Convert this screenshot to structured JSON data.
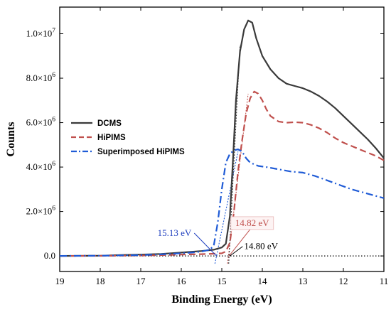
{
  "chart_data": {
    "type": "line",
    "xlabel": "Binding Energy (eV)",
    "ylabel": "Counts",
    "xlim": [
      19,
      11
    ],
    "x_reversed": true,
    "ylim": [
      -700000,
      11200000
    ],
    "x_ticks": [
      19,
      18,
      17,
      16,
      15,
      14,
      13,
      12,
      11
    ],
    "y_ticks": [
      {
        "value": 0,
        "mant": "0.0",
        "exp": ""
      },
      {
        "value": 2000000,
        "mant": "2.0×10",
        "exp": "6"
      },
      {
        "value": 4000000,
        "mant": "4.0×10",
        "exp": "6"
      },
      {
        "value": 6000000,
        "mant": "6.0×10",
        "exp": "6"
      },
      {
        "value": 8000000,
        "mant": "8.0×10",
        "exp": "6"
      },
      {
        "value": 10000000,
        "mant": "1.0×10",
        "exp": "7"
      }
    ],
    "grid": false,
    "legend_position": "middle-left",
    "series": [
      {
        "name": "DCMS",
        "color": "#3a3a3a",
        "style": "solid",
        "points": [
          [
            19,
            0
          ],
          [
            18,
            10000
          ],
          [
            17.5,
            40000
          ],
          [
            17,
            60000
          ],
          [
            16.5,
            90000
          ],
          [
            16,
            150000
          ],
          [
            15.5,
            220000
          ],
          [
            15.2,
            280000
          ],
          [
            15,
            380000
          ],
          [
            14.9,
            550000
          ],
          [
            14.8,
            1800000
          ],
          [
            14.72,
            4500000
          ],
          [
            14.65,
            7000000
          ],
          [
            14.55,
            9200000
          ],
          [
            14.45,
            10200000
          ],
          [
            14.35,
            10600000
          ],
          [
            14.25,
            10500000
          ],
          [
            14.15,
            9800000
          ],
          [
            14.0,
            9000000
          ],
          [
            13.8,
            8400000
          ],
          [
            13.6,
            8000000
          ],
          [
            13.4,
            7750000
          ],
          [
            13.2,
            7650000
          ],
          [
            13.0,
            7550000
          ],
          [
            12.8,
            7400000
          ],
          [
            12.6,
            7200000
          ],
          [
            12.4,
            6950000
          ],
          [
            12.2,
            6650000
          ],
          [
            12.0,
            6300000
          ],
          [
            11.8,
            5950000
          ],
          [
            11.6,
            5600000
          ],
          [
            11.4,
            5250000
          ],
          [
            11.2,
            4850000
          ],
          [
            11.0,
            4400000
          ]
        ]
      },
      {
        "name": "HiPIMS",
        "color": "#c0504d",
        "style": "dash",
        "points": [
          [
            19,
            0
          ],
          [
            18,
            5000
          ],
          [
            17,
            20000
          ],
          [
            16.5,
            40000
          ],
          [
            16,
            60000
          ],
          [
            15.5,
            80000
          ],
          [
            15.2,
            100000
          ],
          [
            15.0,
            120000
          ],
          [
            14.9,
            200000
          ],
          [
            14.8,
            600000
          ],
          [
            14.7,
            2000000
          ],
          [
            14.6,
            3800000
          ],
          [
            14.5,
            5200000
          ],
          [
            14.4,
            6400000
          ],
          [
            14.3,
            7100000
          ],
          [
            14.2,
            7400000
          ],
          [
            14.1,
            7300000
          ],
          [
            14.0,
            7000000
          ],
          [
            13.9,
            6600000
          ],
          [
            13.8,
            6300000
          ],
          [
            13.6,
            6050000
          ],
          [
            13.4,
            6000000
          ],
          [
            13.2,
            6020000
          ],
          [
            13.0,
            6000000
          ],
          [
            12.8,
            5900000
          ],
          [
            12.6,
            5750000
          ],
          [
            12.4,
            5550000
          ],
          [
            12.2,
            5300000
          ],
          [
            12.0,
            5100000
          ],
          [
            11.8,
            4950000
          ],
          [
            11.6,
            4800000
          ],
          [
            11.4,
            4650000
          ],
          [
            11.2,
            4500000
          ],
          [
            11.0,
            4300000
          ]
        ]
      },
      {
        "name": "Superimposed HiPIMS",
        "color": "#1f5bd6",
        "style": "dashdot",
        "points": [
          [
            19,
            0
          ],
          [
            18,
            10000
          ],
          [
            17,
            40000
          ],
          [
            16.5,
            70000
          ],
          [
            16,
            120000
          ],
          [
            15.7,
            160000
          ],
          [
            15.5,
            200000
          ],
          [
            15.3,
            280000
          ],
          [
            15.2,
            450000
          ],
          [
            15.1,
            1500000
          ],
          [
            15.0,
            3000000
          ],
          [
            14.9,
            4200000
          ],
          [
            14.8,
            4600000
          ],
          [
            14.7,
            4750000
          ],
          [
            14.6,
            4800000
          ],
          [
            14.5,
            4700000
          ],
          [
            14.4,
            4400000
          ],
          [
            14.3,
            4200000
          ],
          [
            14.1,
            4050000
          ],
          [
            13.9,
            4000000
          ],
          [
            13.6,
            3900000
          ],
          [
            13.3,
            3800000
          ],
          [
            13.0,
            3750000
          ],
          [
            12.7,
            3600000
          ],
          [
            12.4,
            3400000
          ],
          [
            12.1,
            3200000
          ],
          [
            11.8,
            3000000
          ],
          [
            11.5,
            2850000
          ],
          [
            11.2,
            2700000
          ],
          [
            11.0,
            2600000
          ]
        ]
      }
    ],
    "onset_lines": [
      {
        "color": "#1f5bd6",
        "from": [
          15.17,
          -350000
        ],
        "to": [
          14.6,
          4700000
        ]
      },
      {
        "color": "#c0504d",
        "from": [
          14.86,
          -350000
        ],
        "to": [
          14.35,
          7300000
        ]
      },
      {
        "color": "#3a3a3a",
        "from": [
          14.83,
          -350000
        ],
        "to": [
          14.55,
          9500000
        ]
      }
    ],
    "baseline": {
      "y": 0,
      "color": "#000000",
      "style": "dotted"
    },
    "annotations": [
      {
        "text": "15.13 eV",
        "color": "#1f3fbf",
        "point": [
          15.13,
          0
        ],
        "label_at": [
          15.75,
          900000
        ],
        "anchor": "end"
      },
      {
        "text": "14.82 eV",
        "color": "#c0504d",
        "point": [
          14.82,
          0
        ],
        "label_at": [
          14.25,
          1350000
        ],
        "anchor": "middle",
        "boxed": true
      },
      {
        "text": "14.80 eV",
        "color": "#000000",
        "point": [
          14.8,
          0
        ],
        "label_at": [
          14.45,
          300000
        ],
        "anchor": "start"
      }
    ]
  }
}
